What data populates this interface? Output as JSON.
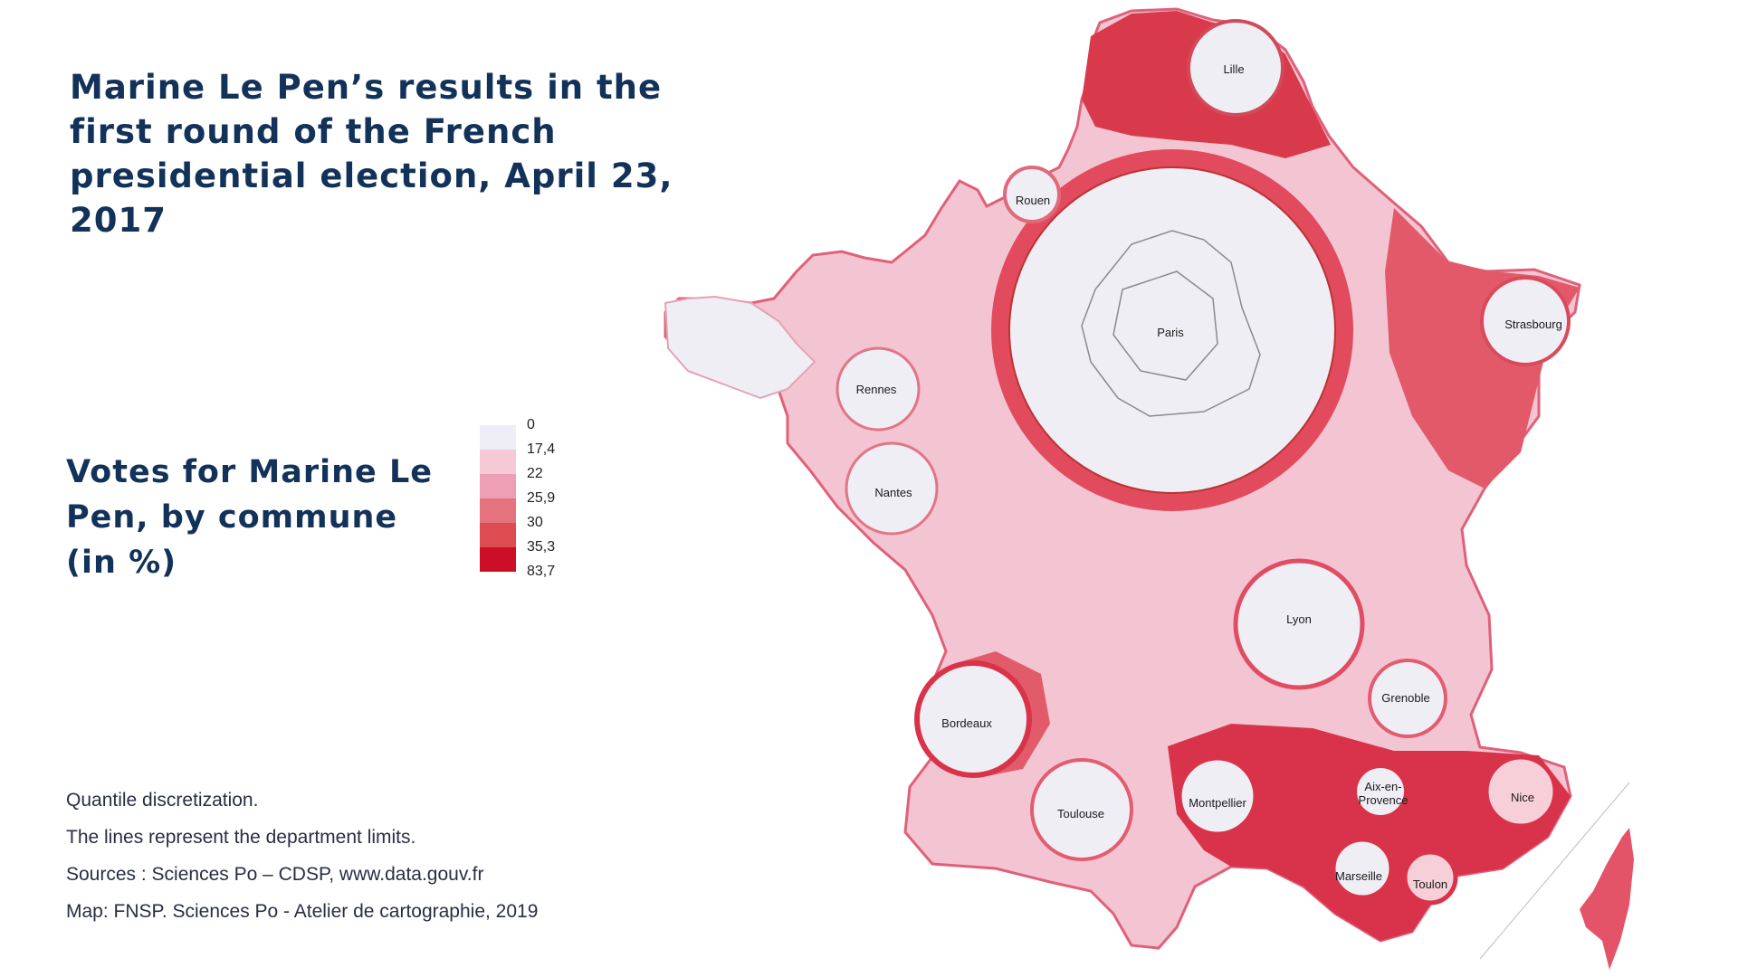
{
  "title": "Marine Le Pen’s results in the first round of the French presidential election, April 23, 2017",
  "legend": {
    "title": "Votes for Marine Le Pen, by commune (in %)",
    "breaks": [
      "0",
      "17,4",
      "22",
      "25,9",
      "30",
      "35,3",
      "83,7"
    ],
    "colors": [
      "#efedf5",
      "#f6c9d7",
      "#ee9fb6",
      "#e5737f",
      "#dd4c50",
      "#cc0e27"
    ]
  },
  "notes": {
    "method": "Quantile discretization.",
    "lines": "The lines represent the department limits.",
    "sources": "Sources : Sciences Po – CDSP, www.data.gouv.fr",
    "credit": "Map: FNSP. Sciences Po - Atelier de cartographie, 2019"
  },
  "cities": {
    "lille": "Lille",
    "rouen": "Rouen",
    "paris": "Paris",
    "strasbourg": "Strasbourg",
    "rennes": "Rennes",
    "nantes": "Nantes",
    "lyon": "Lyon",
    "grenoble": "Grenoble",
    "bordeaux": "Bordeaux",
    "toulouse": "Toulouse",
    "montpellier": "Montpellier",
    "aix_line1": "Aix-en-",
    "aix_line2": "Provence",
    "nice": "Nice",
    "marseille": "Marseille",
    "toulon": "Toulon"
  }
}
